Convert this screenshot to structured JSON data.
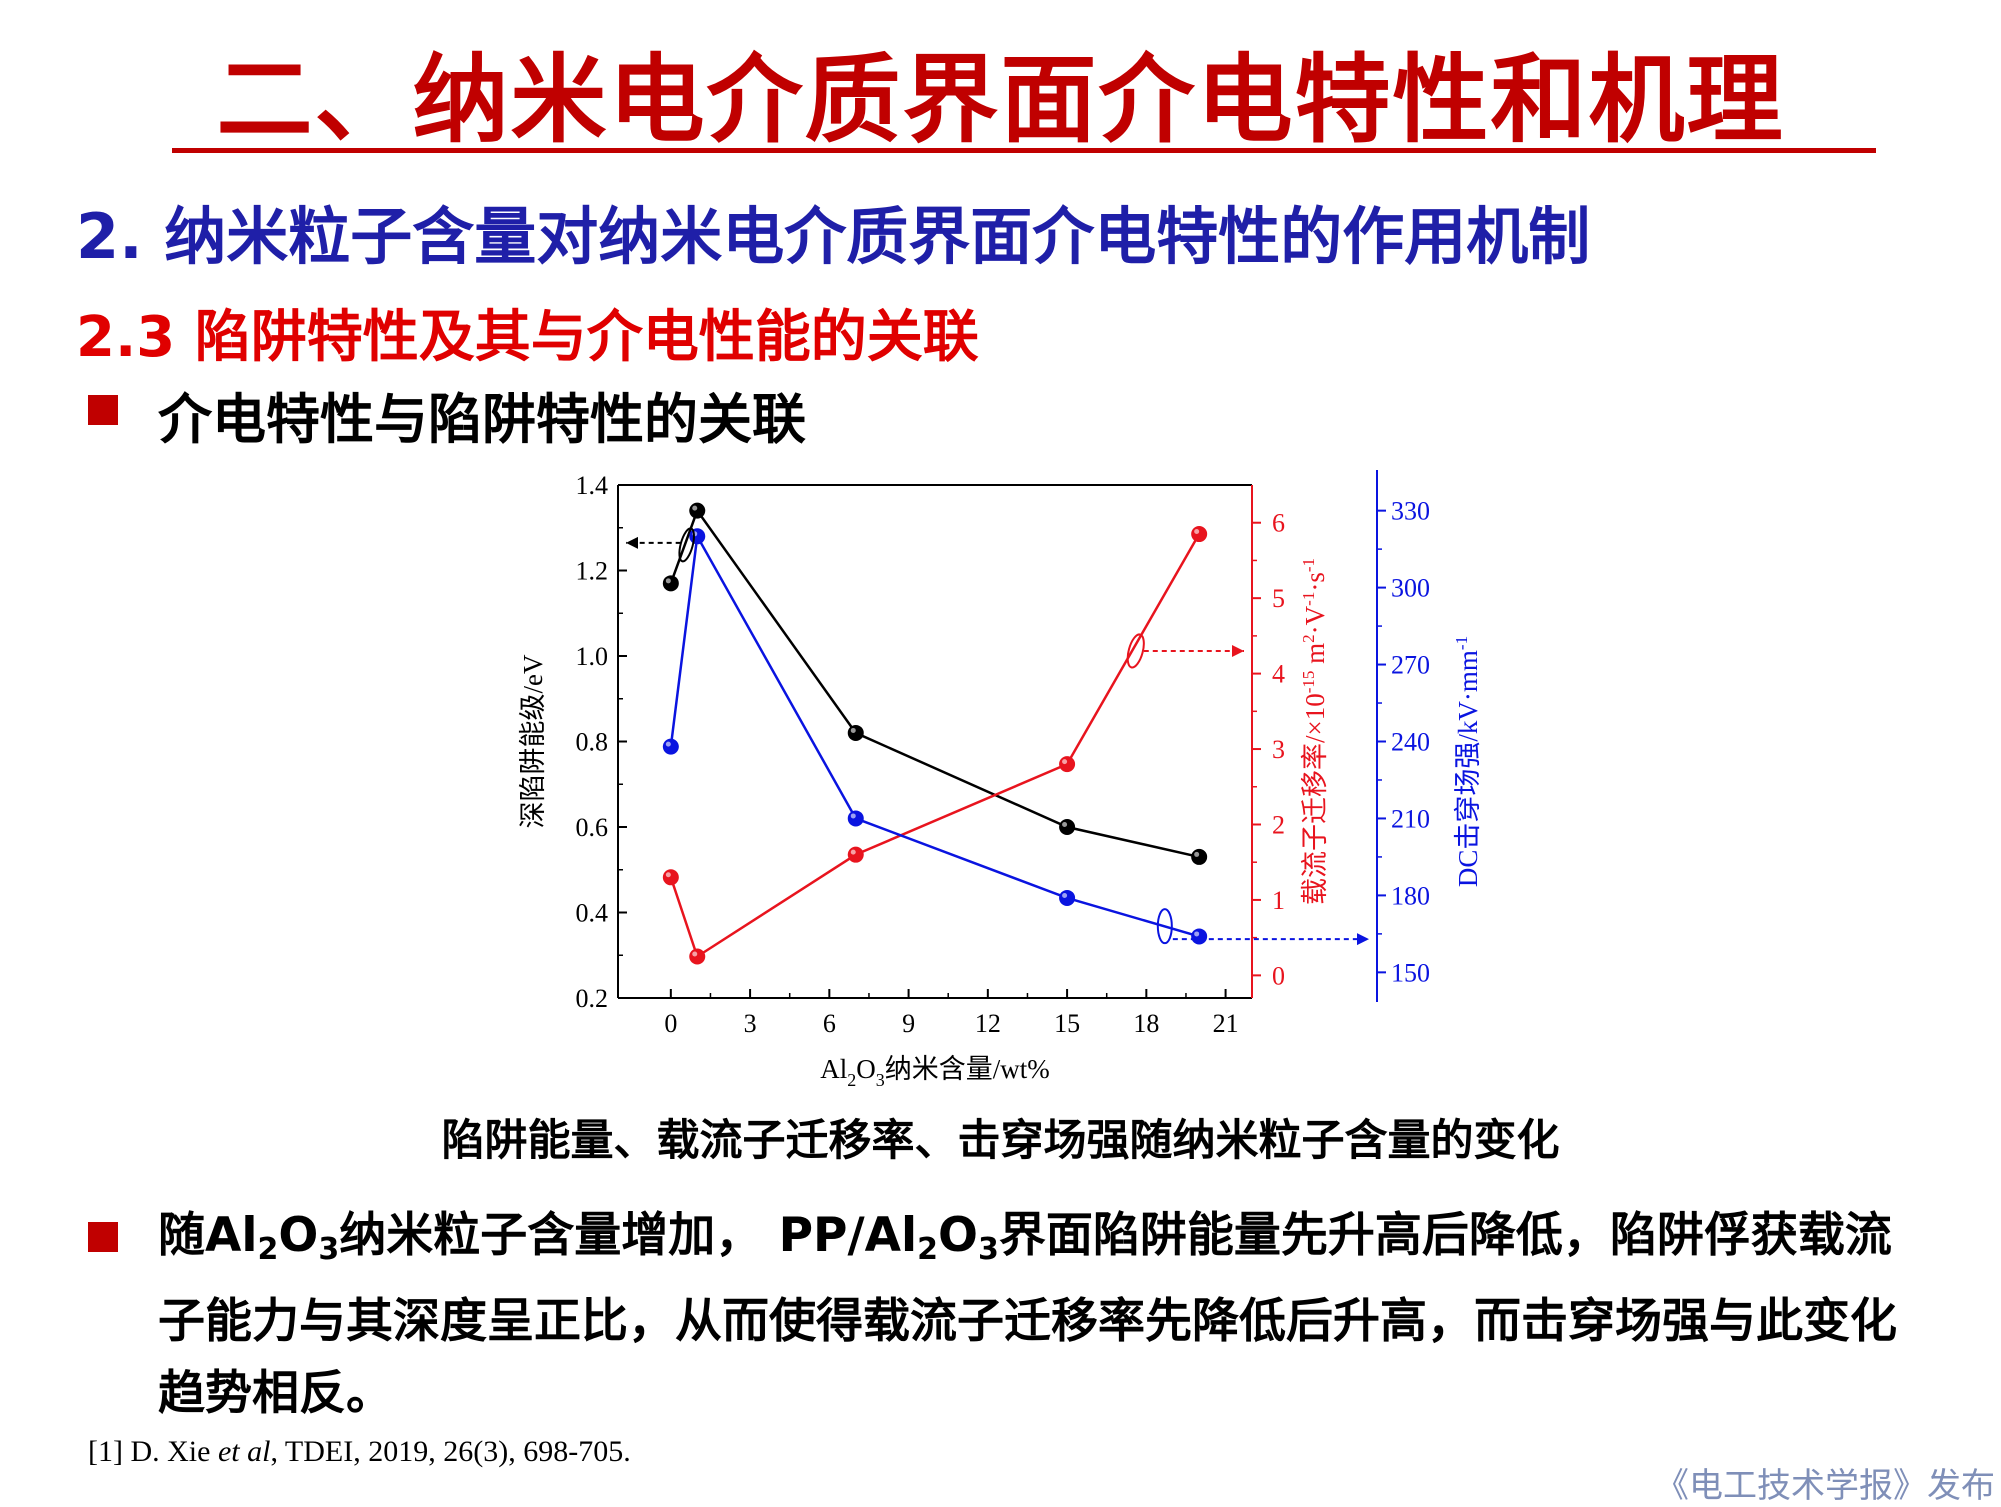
{
  "title": "二、纳米电介质界面介电特性和机理",
  "subtitle": "2. 纳米粒子含量对纳米电介质界面介电特性的作用机制",
  "section": "2.3 陷阱特性及其与介电性能的关联",
  "bullet1": "介电特性与陷阱特性的关联",
  "caption": "陷阱能量、载流子迁移率、击穿场强随纳米粒子含量的变化",
  "bullet2": {
    "p1": "随Al",
    "s1": "2",
    "p2": "O",
    "s2": "3",
    "p3": "纳米粒子含量增加， PP/Al",
    "s3": "2",
    "p4": "O",
    "s4": "3",
    "p5": "界面陷阱能量先升高后降低，陷阱俘获载流子能力与其深度呈正比，从而使得载流子迁移率先降低后升高，而击穿场强与此变化趋势相反。"
  },
  "reference": {
    "pre": "[1] D. Xie ",
    "italic": "et al",
    "post": ", TDEI, 2019, 26(3), 698-705."
  },
  "publisher": "《电工技术学报》发布",
  "colors": {
    "title": "#c00000",
    "subtitle": "#1f1fa8",
    "section": "#e00000",
    "series_black": "#000000",
    "series_red": "#e8141e",
    "series_blue": "#0a14e0"
  },
  "chart_data": {
    "type": "line",
    "x": [
      0,
      1,
      7,
      15,
      20
    ],
    "xlabel": {
      "pre": "Al",
      "s1": "2",
      "mid": "O",
      "s2": "3",
      "post": "纳米含量/wt%"
    },
    "xlim": [
      -2,
      22
    ],
    "xticks": [
      "0",
      "3",
      "6",
      "9",
      "12",
      "15",
      "18",
      "21"
    ],
    "axes": {
      "left": {
        "label": "深陷阱能级/eV",
        "lim": [
          0.2,
          1.4
        ],
        "ticks": [
          "0.2",
          "0.4",
          "0.6",
          "0.8",
          "1.0",
          "1.2",
          "1.4"
        ]
      },
      "right1": {
        "label_pre": "载流子迁移率/×10",
        "label_exp1": "-15",
        "label_mid": " m",
        "label_exp2": "2",
        "label_mid2": "·V",
        "label_exp3": "-1",
        "label_mid3": "·s",
        "label_exp4": "-1",
        "lim": [
          -0.3,
          6.5
        ],
        "ticks": [
          "0",
          "1",
          "2",
          "3",
          "4",
          "5",
          "6"
        ]
      },
      "right2": {
        "label_pre": "DC击穿场强/kV·mm",
        "label_exp": "-1",
        "lim": [
          140,
          340
        ],
        "ticks": [
          "150",
          "180",
          "210",
          "240",
          "270",
          "300",
          "330"
        ]
      }
    },
    "series": [
      {
        "axis": "left",
        "color": "#000000",
        "values": [
          1.17,
          1.34,
          0.82,
          0.6,
          0.53
        ]
      },
      {
        "axis": "right1",
        "color": "#e8141e",
        "values": [
          1.3,
          0.25,
          1.6,
          2.8,
          5.85
        ]
      },
      {
        "axis": "right2",
        "color": "#0a14e0",
        "values": [
          238,
          320,
          210,
          179,
          164
        ]
      }
    ],
    "legend": "none",
    "grid": false
  }
}
